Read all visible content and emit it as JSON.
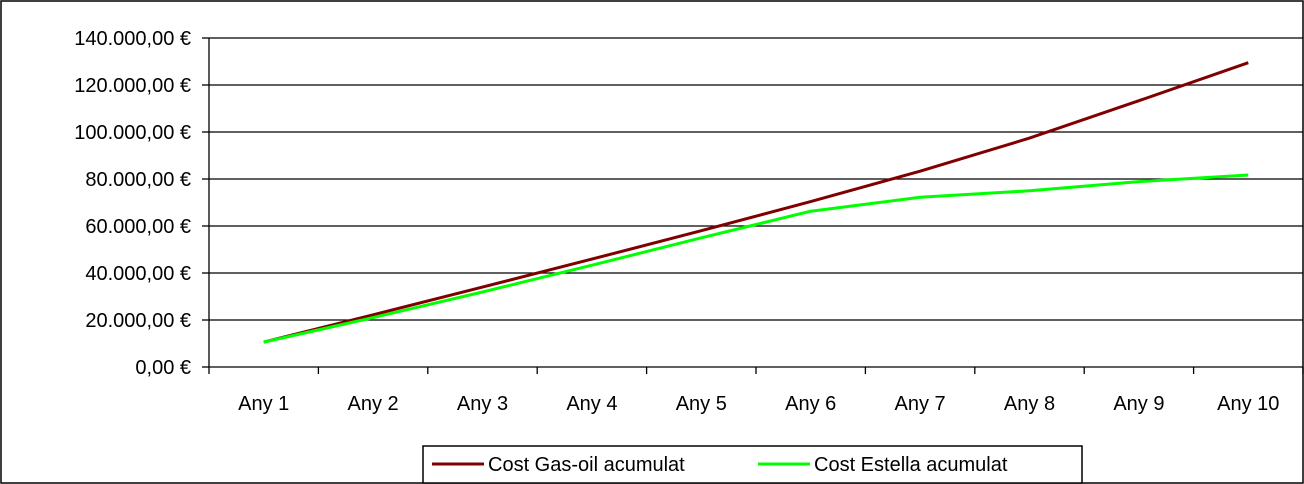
{
  "chart_data": {
    "type": "line",
    "title": "",
    "xlabel": "",
    "ylabel": "",
    "categories": [
      "Any 1",
      "Any 2",
      "Any 3",
      "Any 4",
      "Any 5",
      "Any 6",
      "Any 7",
      "Any 8",
      "Any 9",
      "Any 10"
    ],
    "ylim": [
      0,
      140000
    ],
    "yticks": [
      0,
      20000,
      40000,
      60000,
      80000,
      100000,
      120000,
      140000
    ],
    "ytick_labels": [
      "0,00 €",
      "20.000,00 €",
      "40.000,00 €",
      "60.000,00 €",
      "80.000,00 €",
      "100.000,00 €",
      "120.000,00 €",
      "140.000,00 €"
    ],
    "grid": true,
    "legend_position": "bottom",
    "series": [
      {
        "name": "Cost Gas-oil acumulat",
        "color": "#800000",
        "values": [
          10600,
          22200,
          34000,
          45900,
          58000,
          70400,
          83300,
          97400,
          113300,
          129500
        ]
      },
      {
        "name": "Cost Estella acumulat",
        "color": "#00ff00",
        "values": [
          10600,
          21000,
          31900,
          43300,
          55000,
          66300,
          72200,
          75000,
          78900,
          81700
        ]
      }
    ]
  }
}
